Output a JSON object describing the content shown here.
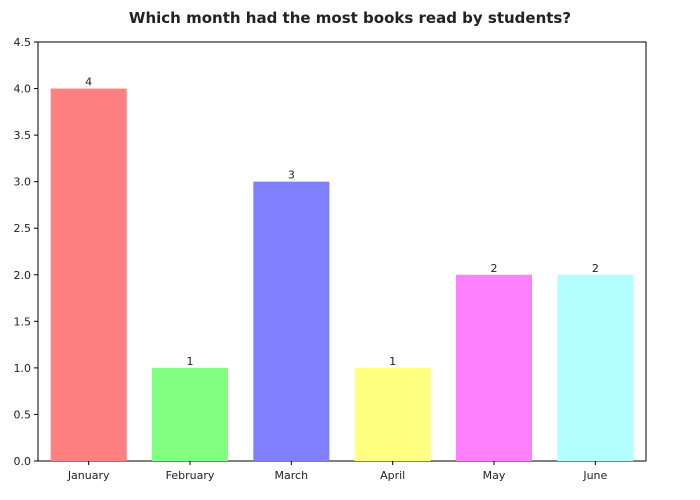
{
  "chart_data": {
    "type": "bar",
    "title": "Which month had the most books read by students?",
    "xlabel": "",
    "ylabel": "",
    "categories": [
      "January",
      "February",
      "March",
      "April",
      "May",
      "June"
    ],
    "values": [
      4,
      1,
      3,
      1,
      2,
      2
    ],
    "data_labels": [
      "4",
      "1",
      "3",
      "1",
      "2",
      "2"
    ],
    "colors": [
      "#ff8080",
      "#80ff80",
      "#8080ff",
      "#ffff80",
      "#ff80ff",
      "#b3ffff"
    ],
    "ylim": [
      0,
      4.5
    ],
    "yticks": [
      0,
      0.5,
      1,
      1.5,
      2,
      2.5,
      3,
      3.5,
      4,
      4.5
    ],
    "ytick_labels": [
      "0.0",
      "0.5",
      "1.0",
      "1.5",
      "2.0",
      "2.5",
      "3.0",
      "3.5",
      "4.0",
      "4.5"
    ],
    "grid": false,
    "legend": "none"
  }
}
